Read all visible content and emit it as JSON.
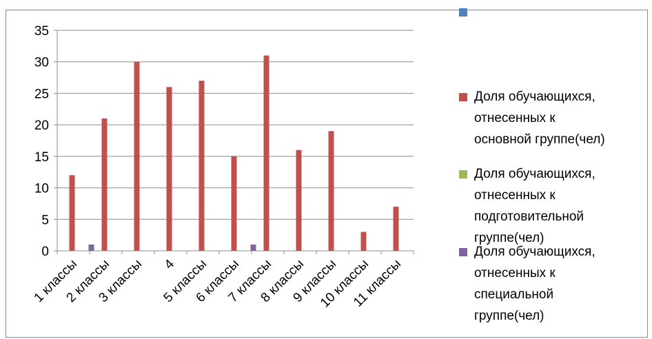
{
  "chart_data": {
    "type": "bar",
    "categories": [
      "1 классы",
      "2 классы",
      "3 классы",
      "4",
      "5 классы",
      "6 классы",
      "7 классы",
      "8 классы",
      "9 классы",
      "10 классы",
      "11 классы"
    ],
    "series": [
      {
        "name": "",
        "color": "#4f81bd",
        "values": [
          0,
          0,
          0,
          0,
          0,
          0,
          0,
          0,
          0,
          0,
          0
        ]
      },
      {
        "name": "Доля обучающихся, отнесенных к основной группе(чел)",
        "color": "#c0504d",
        "values": [
          12,
          21,
          30,
          26,
          27,
          15,
          31,
          16,
          19,
          3,
          7
        ]
      },
      {
        "name": "Доля обучающихся, отнесенных к подготовительной группе(чел)",
        "color": "#9bbb59",
        "values": [
          0,
          0,
          0,
          0,
          0,
          0,
          0,
          0,
          0,
          0,
          0
        ]
      },
      {
        "name": "Доля обучающихся, отнесенных к специальной группе(чел)",
        "color": "#8064a2",
        "values": [
          1,
          0,
          0,
          0,
          0,
          1,
          0,
          0,
          0,
          0,
          0
        ]
      }
    ],
    "yticks": [
      "0",
      "5",
      "10",
      "15",
      "20",
      "25",
      "30",
      "35"
    ],
    "ylim": [
      0,
      35
    ],
    "grid": true,
    "legend_position": "right"
  },
  "legend": {
    "items": [
      {
        "label": "",
        "color": "#4f81bd"
      },
      {
        "label": "Доля обучающихся,\nотнесенных к\nосновной группе(чел)",
        "color": "#c0504d"
      },
      {
        "label": "Доля обучающихся,\nотнесенных к\nподготовительной\nгруппе(чел)",
        "color": "#9bbb59"
      },
      {
        "label": "Доля обучающихся,\nотнесенных к\nспециальной\nгруппе(чел)",
        "color": "#8064a2"
      }
    ]
  }
}
